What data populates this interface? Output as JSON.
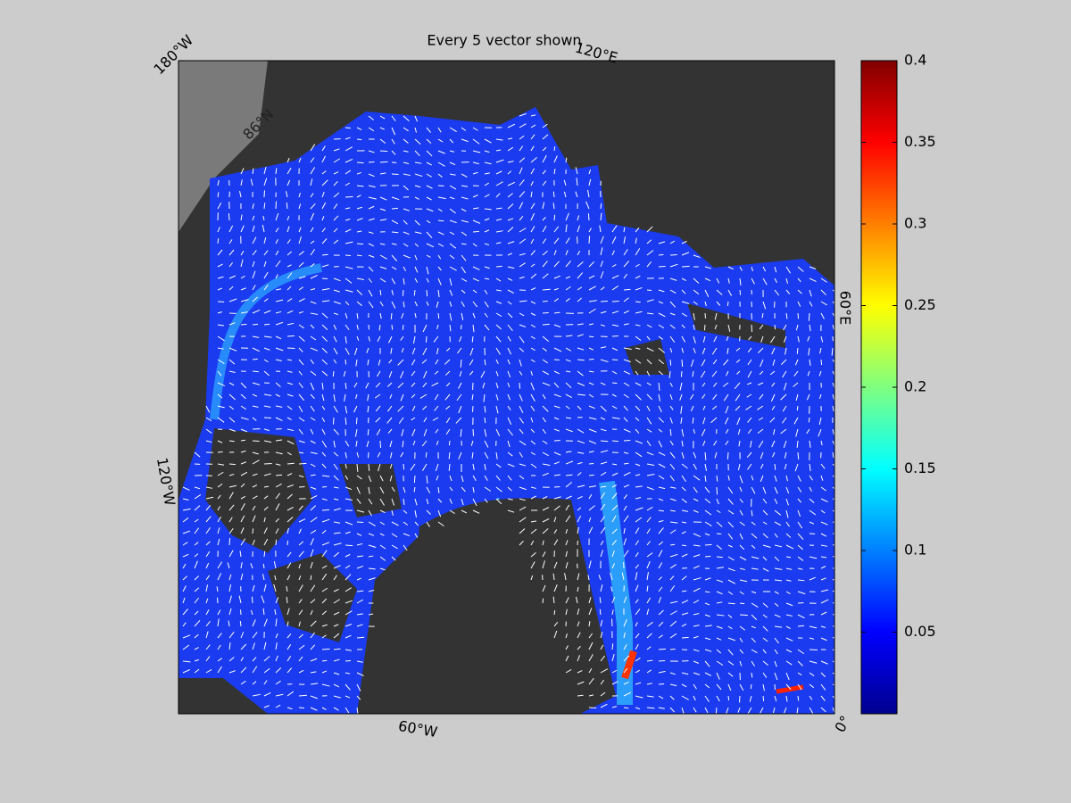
{
  "title": "Every 5 vector shown",
  "graticule_labels": [
    "180°W",
    "120°E",
    "60°E",
    "0°",
    "60°W",
    "120°W",
    "86°N"
  ],
  "colorbar": {
    "lim": [
      0,
      0.4
    ],
    "ticks": [
      0.05,
      0.1,
      0.15,
      0.2,
      0.25,
      0.3,
      0.35,
      0.4
    ]
  }
}
